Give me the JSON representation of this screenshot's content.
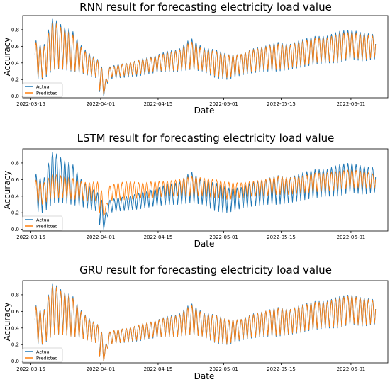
{
  "chart_data": [
    {
      "type": "line",
      "title": "RNN result for forecasting electricity load value",
      "xlabel": "Date",
      "ylabel": "Accuracy",
      "xlim": [
        "2022-03-13",
        "2022-06-10"
      ],
      "ylim": [
        -0.02,
        0.97
      ],
      "x_ticks": [
        "2022-03-15",
        "2022-04-01",
        "2022-04-15",
        "2022-05-01",
        "2022-05-15",
        "2022-06-01"
      ],
      "y_ticks": [
        0.0,
        0.2,
        0.4,
        0.6,
        0.8
      ],
      "legend": {
        "position": "lower-left",
        "entries": [
          "Actual",
          "Predicted"
        ]
      },
      "grid": false,
      "series": [
        {
          "name": "Actual",
          "color": "#1f77b4",
          "x": [
            "2022-03-16",
            "2022-03-18",
            "2022-03-20",
            "2022-03-21",
            "2022-03-23",
            "2022-03-25",
            "2022-03-27",
            "2022-03-29",
            "2022-03-31",
            "2022-04-01",
            "2022-04-02",
            "2022-04-03",
            "2022-04-05",
            "2022-04-08",
            "2022-04-11",
            "2022-04-14",
            "2022-04-17",
            "2022-04-20",
            "2022-04-23",
            "2022-04-26",
            "2022-04-29",
            "2022-05-02",
            "2022-05-05",
            "2022-05-08",
            "2022-05-11",
            "2022-05-14",
            "2022-05-17",
            "2022-05-20",
            "2022-05-23",
            "2022-05-26",
            "2022-05-29",
            "2022-06-01",
            "2022-06-04",
            "2022-06-07"
          ],
          "peak": [
            0.68,
            0.58,
            0.93,
            0.92,
            0.83,
            0.8,
            0.62,
            0.52,
            0.45,
            0.42,
            0.15,
            0.35,
            0.38,
            0.4,
            0.45,
            0.48,
            0.54,
            0.56,
            0.7,
            0.58,
            0.56,
            0.5,
            0.5,
            0.57,
            0.6,
            0.65,
            0.62,
            0.68,
            0.72,
            0.72,
            0.78,
            0.8,
            0.76,
            0.74
          ],
          "trough": [
            0.22,
            0.2,
            0.3,
            0.33,
            0.32,
            0.3,
            0.28,
            0.25,
            0.22,
            0.0,
            0.0,
            0.2,
            0.22,
            0.23,
            0.25,
            0.28,
            0.3,
            0.3,
            0.32,
            0.3,
            0.22,
            0.2,
            0.25,
            0.28,
            0.3,
            0.3,
            0.32,
            0.35,
            0.38,
            0.4,
            0.4,
            0.45,
            0.42,
            0.45
          ]
        },
        {
          "name": "Predicted",
          "color": "#ff7f0e",
          "x": [
            "2022-03-16",
            "2022-03-18",
            "2022-03-20",
            "2022-03-21",
            "2022-03-23",
            "2022-03-25",
            "2022-03-27",
            "2022-03-29",
            "2022-03-31",
            "2022-04-01",
            "2022-04-02",
            "2022-04-03",
            "2022-04-05",
            "2022-04-08",
            "2022-04-11",
            "2022-04-14",
            "2022-04-17",
            "2022-04-20",
            "2022-04-23",
            "2022-04-26",
            "2022-04-29",
            "2022-05-02",
            "2022-05-05",
            "2022-05-08",
            "2022-05-11",
            "2022-05-14",
            "2022-05-17",
            "2022-05-20",
            "2022-05-23",
            "2022-05-26",
            "2022-05-29",
            "2022-06-01",
            "2022-06-04",
            "2022-06-07"
          ],
          "peak": [
            0.66,
            0.56,
            0.88,
            0.88,
            0.8,
            0.76,
            0.6,
            0.5,
            0.44,
            0.4,
            0.15,
            0.34,
            0.37,
            0.4,
            0.44,
            0.47,
            0.52,
            0.55,
            0.66,
            0.56,
            0.54,
            0.49,
            0.5,
            0.56,
            0.59,
            0.63,
            0.61,
            0.66,
            0.7,
            0.7,
            0.75,
            0.77,
            0.74,
            0.72
          ],
          "trough": [
            0.24,
            0.22,
            0.32,
            0.34,
            0.33,
            0.31,
            0.29,
            0.26,
            0.23,
            0.02,
            0.02,
            0.22,
            0.24,
            0.25,
            0.27,
            0.3,
            0.31,
            0.31,
            0.33,
            0.31,
            0.24,
            0.22,
            0.27,
            0.3,
            0.32,
            0.32,
            0.34,
            0.37,
            0.4,
            0.42,
            0.42,
            0.47,
            0.44,
            0.47
          ]
        }
      ]
    },
    {
      "type": "line",
      "title": "LSTM result for forecasting electricity load value",
      "xlabel": "Date",
      "ylabel": "Accuracy",
      "xlim": [
        "2022-03-13",
        "2022-06-10"
      ],
      "ylim": [
        -0.02,
        0.97
      ],
      "x_ticks": [
        "2022-03-15",
        "2022-04-01",
        "2022-04-15",
        "2022-05-01",
        "2022-05-15",
        "2022-06-01"
      ],
      "y_ticks": [
        0.0,
        0.2,
        0.4,
        0.6,
        0.8
      ],
      "legend": {
        "position": "lower-left",
        "entries": [
          "Actual",
          "Predicted"
        ]
      },
      "grid": false,
      "series": [
        {
          "name": "Actual",
          "color": "#1f77b4",
          "x": [
            "2022-03-16",
            "2022-03-18",
            "2022-03-20",
            "2022-03-21",
            "2022-03-23",
            "2022-03-25",
            "2022-03-27",
            "2022-03-29",
            "2022-03-31",
            "2022-04-01",
            "2022-04-02",
            "2022-04-03",
            "2022-04-05",
            "2022-04-08",
            "2022-04-11",
            "2022-04-14",
            "2022-04-17",
            "2022-04-20",
            "2022-04-23",
            "2022-04-26",
            "2022-04-29",
            "2022-05-02",
            "2022-05-05",
            "2022-05-08",
            "2022-05-11",
            "2022-05-14",
            "2022-05-17",
            "2022-05-20",
            "2022-05-23",
            "2022-05-26",
            "2022-05-29",
            "2022-06-01",
            "2022-06-04",
            "2022-06-07"
          ],
          "peak": [
            0.68,
            0.58,
            0.93,
            0.92,
            0.83,
            0.8,
            0.62,
            0.52,
            0.45,
            0.42,
            0.15,
            0.35,
            0.38,
            0.4,
            0.45,
            0.48,
            0.54,
            0.56,
            0.7,
            0.58,
            0.56,
            0.5,
            0.5,
            0.57,
            0.6,
            0.65,
            0.62,
            0.68,
            0.72,
            0.72,
            0.78,
            0.8,
            0.76,
            0.74
          ],
          "trough": [
            0.22,
            0.2,
            0.3,
            0.33,
            0.32,
            0.3,
            0.28,
            0.25,
            0.22,
            0.0,
            0.0,
            0.2,
            0.22,
            0.23,
            0.25,
            0.28,
            0.3,
            0.3,
            0.32,
            0.3,
            0.22,
            0.2,
            0.25,
            0.28,
            0.3,
            0.3,
            0.32,
            0.35,
            0.38,
            0.4,
            0.4,
            0.45,
            0.42,
            0.45
          ]
        },
        {
          "name": "Predicted",
          "color": "#ff7f0e",
          "x": [
            "2022-03-16",
            "2022-03-18",
            "2022-03-20",
            "2022-03-21",
            "2022-03-23",
            "2022-03-25",
            "2022-03-27",
            "2022-03-29",
            "2022-03-31",
            "2022-04-01",
            "2022-04-02",
            "2022-04-03",
            "2022-04-05",
            "2022-04-08",
            "2022-04-11",
            "2022-04-14",
            "2022-04-17",
            "2022-04-20",
            "2022-04-23",
            "2022-04-26",
            "2022-04-29",
            "2022-05-02",
            "2022-05-05",
            "2022-05-08",
            "2022-05-11",
            "2022-05-14",
            "2022-05-17",
            "2022-05-20",
            "2022-05-23",
            "2022-05-26",
            "2022-05-29",
            "2022-06-01",
            "2022-06-04",
            "2022-06-07"
          ],
          "peak": [
            0.6,
            0.55,
            0.66,
            0.66,
            0.64,
            0.62,
            0.58,
            0.56,
            0.58,
            0.55,
            0.2,
            0.52,
            0.56,
            0.58,
            0.56,
            0.58,
            0.58,
            0.6,
            0.64,
            0.62,
            0.6,
            0.57,
            0.56,
            0.58,
            0.6,
            0.64,
            0.62,
            0.64,
            0.68,
            0.68,
            0.7,
            0.72,
            0.7,
            0.66
          ],
          "trough": [
            0.32,
            0.3,
            0.38,
            0.38,
            0.38,
            0.36,
            0.36,
            0.34,
            0.34,
            0.16,
            0.16,
            0.34,
            0.35,
            0.36,
            0.38,
            0.38,
            0.4,
            0.4,
            0.4,
            0.4,
            0.38,
            0.36,
            0.38,
            0.4,
            0.4,
            0.42,
            0.42,
            0.44,
            0.45,
            0.46,
            0.48,
            0.5,
            0.5,
            0.5
          ]
        }
      ]
    },
    {
      "type": "line",
      "title": "GRU result for forecasting electricity load value",
      "xlabel": "Date",
      "ylabel": "Accuracy",
      "xlim": [
        "2022-03-13",
        "2022-06-10"
      ],
      "ylim": [
        -0.02,
        0.97
      ],
      "x_ticks": [
        "2022-03-15",
        "2022-04-01",
        "2022-04-15",
        "2022-05-01",
        "2022-05-15",
        "2022-06-01"
      ],
      "y_ticks": [
        0.0,
        0.2,
        0.4,
        0.6,
        0.8
      ],
      "legend": {
        "position": "lower-left",
        "entries": [
          "Actual",
          "Predicted"
        ]
      },
      "grid": false,
      "series": [
        {
          "name": "Actual",
          "color": "#1f77b4",
          "x": [
            "2022-03-16",
            "2022-03-18",
            "2022-03-20",
            "2022-03-21",
            "2022-03-23",
            "2022-03-25",
            "2022-03-27",
            "2022-03-29",
            "2022-03-31",
            "2022-04-01",
            "2022-04-02",
            "2022-04-03",
            "2022-04-05",
            "2022-04-08",
            "2022-04-11",
            "2022-04-14",
            "2022-04-17",
            "2022-04-20",
            "2022-04-23",
            "2022-04-26",
            "2022-04-29",
            "2022-05-02",
            "2022-05-05",
            "2022-05-08",
            "2022-05-11",
            "2022-05-14",
            "2022-05-17",
            "2022-05-20",
            "2022-05-23",
            "2022-05-26",
            "2022-05-29",
            "2022-06-01",
            "2022-06-04",
            "2022-06-07"
          ],
          "peak": [
            0.68,
            0.58,
            0.93,
            0.92,
            0.83,
            0.8,
            0.62,
            0.52,
            0.45,
            0.42,
            0.15,
            0.35,
            0.38,
            0.4,
            0.45,
            0.48,
            0.54,
            0.56,
            0.7,
            0.58,
            0.56,
            0.5,
            0.5,
            0.57,
            0.6,
            0.65,
            0.62,
            0.68,
            0.72,
            0.72,
            0.78,
            0.8,
            0.76,
            0.74
          ],
          "trough": [
            0.22,
            0.2,
            0.3,
            0.33,
            0.32,
            0.3,
            0.28,
            0.25,
            0.22,
            0.0,
            0.0,
            0.2,
            0.22,
            0.23,
            0.25,
            0.28,
            0.3,
            0.3,
            0.32,
            0.3,
            0.22,
            0.2,
            0.25,
            0.28,
            0.3,
            0.3,
            0.32,
            0.35,
            0.38,
            0.4,
            0.4,
            0.45,
            0.42,
            0.45
          ]
        },
        {
          "name": "Predicted",
          "color": "#ff7f0e",
          "x": [
            "2022-03-16",
            "2022-03-18",
            "2022-03-20",
            "2022-03-21",
            "2022-03-23",
            "2022-03-25",
            "2022-03-27",
            "2022-03-29",
            "2022-03-31",
            "2022-04-01",
            "2022-04-02",
            "2022-04-03",
            "2022-04-05",
            "2022-04-08",
            "2022-04-11",
            "2022-04-14",
            "2022-04-17",
            "2022-04-20",
            "2022-04-23",
            "2022-04-26",
            "2022-04-29",
            "2022-05-02",
            "2022-05-05",
            "2022-05-08",
            "2022-05-11",
            "2022-05-14",
            "2022-05-17",
            "2022-05-20",
            "2022-05-23",
            "2022-05-26",
            "2022-05-29",
            "2022-06-01",
            "2022-06-04",
            "2022-06-07"
          ],
          "peak": [
            0.67,
            0.57,
            0.91,
            0.9,
            0.82,
            0.78,
            0.61,
            0.51,
            0.45,
            0.41,
            0.14,
            0.35,
            0.38,
            0.4,
            0.45,
            0.48,
            0.53,
            0.55,
            0.68,
            0.57,
            0.55,
            0.5,
            0.5,
            0.56,
            0.6,
            0.64,
            0.62,
            0.67,
            0.71,
            0.71,
            0.76,
            0.79,
            0.75,
            0.73
          ],
          "trough": [
            0.23,
            0.21,
            0.31,
            0.33,
            0.32,
            0.3,
            0.28,
            0.25,
            0.22,
            0.0,
            0.0,
            0.2,
            0.22,
            0.24,
            0.26,
            0.29,
            0.3,
            0.3,
            0.32,
            0.3,
            0.23,
            0.21,
            0.26,
            0.29,
            0.31,
            0.31,
            0.33,
            0.36,
            0.39,
            0.41,
            0.41,
            0.46,
            0.43,
            0.46
          ]
        }
      ]
    }
  ]
}
